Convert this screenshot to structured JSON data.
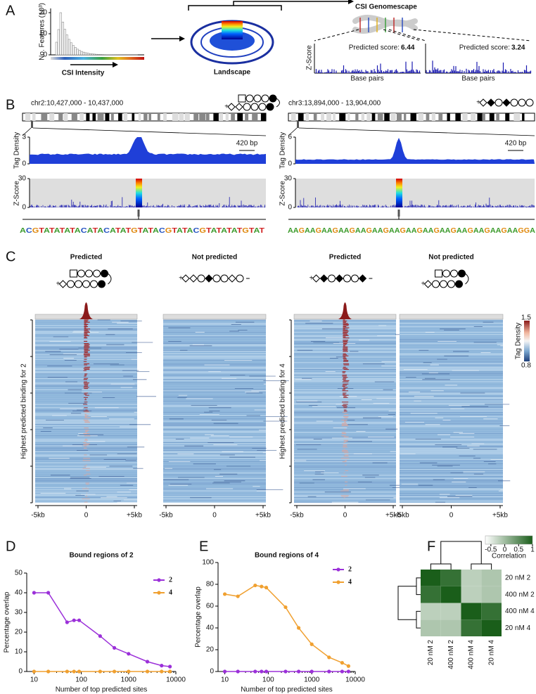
{
  "A": {
    "letter": "A",
    "hist_ylabel": "No. Features (10³)",
    "hist_yticks": [
      0,
      10,
      20
    ],
    "hist_xlabel": "CSI  Intensity",
    "landscape": "Landscape",
    "genomescape": "CSI Genomescape",
    "zscore": "Z-Score",
    "basepairs": "Base pairs",
    "scores": [
      {
        "label": "Predicted score:",
        "value": 6.44
      },
      {
        "label": "Predicted score:",
        "value": 3.24
      }
    ]
  },
  "B": {
    "letter": "B",
    "loci": [
      {
        "locus": "chr2:10,427,000 - 10,437,000",
        "scale": "420 bp",
        "tag_label": "Tag Density",
        "tag_yticks": [
          0,
          3
        ],
        "z_label": "Z-Score",
        "z_yticks": [
          0,
          30
        ],
        "sequence": "ACGTATATATACATACATATGTATACGTATACGTATATATGTAT"
      },
      {
        "locus": "chr3:13,894,000 - 13,904,000",
        "scale": "420 bp",
        "tag_label": "Tag Density",
        "tag_yticks": [
          0,
          6
        ],
        "z_label": "Z-Score",
        "z_yticks": [
          0,
          30
        ],
        "sequence": "AAGAAGAAGAAGAAGAAGAAGAAGAAGAAGAAGAAGAAGAAGGA"
      }
    ]
  },
  "C": {
    "letter": "C",
    "panels": [
      {
        "title": "Predicted"
      },
      {
        "title": "Not predicted"
      },
      {
        "title": "Predicted"
      },
      {
        "title": "Not predicted"
      }
    ],
    "ylabels": [
      "Highest predicted binding for 2",
      "Highest predicted binding for 4"
    ],
    "xticks": [
      "-5kb",
      "0",
      "+5kb"
    ],
    "colorbar": {
      "label": "Tag Density",
      "max": 1.5,
      "min": 0.8
    }
  },
  "chart_data": [
    {
      "type": "line",
      "panel": "D",
      "title": "Bound regions of 2",
      "xlabel": "Number of top predicted sites",
      "ylabel": "Percentage overlap",
      "xscale": "log",
      "xlim": [
        7,
        10000
      ],
      "xticks": [
        10,
        100,
        1000,
        10000
      ],
      "ylim": [
        0,
        50
      ],
      "yticks": [
        0,
        10,
        20,
        30,
        40,
        50
      ],
      "x": [
        10,
        20,
        50,
        70,
        90,
        250,
        500,
        1000,
        2500,
        5000,
        7500
      ],
      "series": [
        {
          "name": "2",
          "color": "#9b30d9",
          "values": [
            40,
            40,
            25,
            26,
            26,
            18,
            12,
            9,
            5,
            3,
            2.5
          ]
        },
        {
          "name": "4",
          "color": "#f0a030",
          "values": [
            0,
            0,
            0,
            0,
            0,
            0,
            0,
            0,
            0,
            0,
            0
          ]
        }
      ],
      "legend": "upper right"
    },
    {
      "type": "line",
      "panel": "E",
      "title": "Bound regions of 4",
      "xlabel": "Number of top predicted sites",
      "ylabel": "Percentage overlap",
      "xscale": "log",
      "xlim": [
        7,
        10000
      ],
      "xticks": [
        10,
        100,
        1000,
        10000
      ],
      "ylim": [
        0,
        100
      ],
      "yticks": [
        0,
        20,
        40,
        60,
        80,
        100
      ],
      "x": [
        10,
        20,
        50,
        70,
        90,
        250,
        500,
        1000,
        2500,
        5000,
        7000
      ],
      "series": [
        {
          "name": "2",
          "color": "#9b30d9",
          "values": [
            0,
            0,
            0,
            0,
            0,
            0,
            0,
            0,
            0,
            0,
            0
          ]
        },
        {
          "name": "4",
          "color": "#f0a030",
          "values": [
            71,
            69,
            79,
            78,
            77,
            59,
            40,
            25,
            13,
            8,
            5
          ]
        }
      ],
      "legend": "upper right"
    },
    {
      "type": "heatmap",
      "panel": "F",
      "colorbar_label": "Correlation",
      "clim": [
        -0.7,
        1
      ],
      "cticks": [
        -0.5,
        0,
        0.5,
        1
      ],
      "rows": [
        "20 nM 2",
        "400 nM 2",
        "400 nM 4",
        "20 nM 4"
      ],
      "columns": [
        "20 nM 2",
        "400 nM 2",
        "400 nM 4",
        "20 nM 4"
      ],
      "values": [
        [
          1,
          0.8,
          -0.2,
          -0.1
        ],
        [
          0.8,
          1,
          -0.2,
          -0.1
        ],
        [
          -0.2,
          -0.2,
          1,
          0.8
        ],
        [
          -0.1,
          -0.1,
          0.8,
          1
        ]
      ]
    }
  ]
}
